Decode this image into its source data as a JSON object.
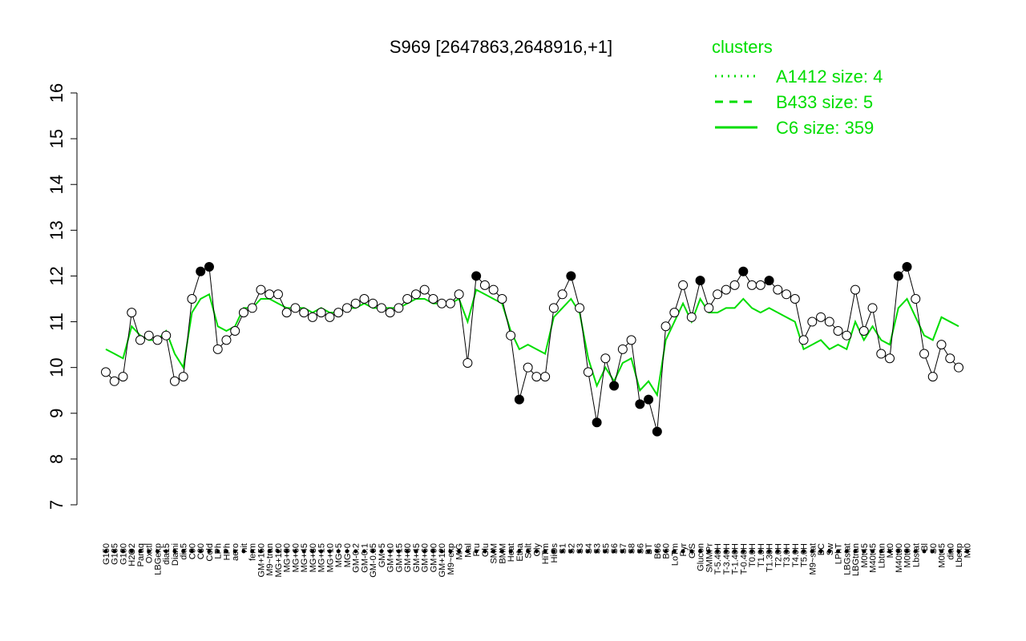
{
  "chart_data": {
    "type": "line",
    "title": "S969 [2647863,2648916,+1]",
    "xlabel": "",
    "ylabel": "",
    "ylim": [
      7,
      16
    ],
    "yticks": [
      7,
      8,
      9,
      10,
      11,
      12,
      13,
      14,
      15,
      16
    ],
    "grid": false,
    "legend_position": "top-right",
    "legend": {
      "title": "clusters",
      "entries": [
        {
          "label": "A1412 size: 4",
          "style": "dotted"
        },
        {
          "label": "B433 size: 5",
          "style": "dashed"
        },
        {
          "label": "C6 size: 359",
          "style": "solid"
        }
      ]
    },
    "colors": {
      "series_line": "#00dd00",
      "points_line": "#000000",
      "point_fill": "#ffffff",
      "highlight_fill": "#000000"
    },
    "x_tick_labels": [
      "G150",
      "G135",
      "G180",
      "H2O2",
      "Paraq",
      "Oxctl",
      "LBGexp",
      "dia15",
      "Diami",
      "dia5",
      "C90",
      "C30",
      "Cold",
      "LPh",
      "HPh",
      "aero",
      "nit",
      "ferm",
      "GM+150",
      "M9~tran",
      "MG+120",
      "MG+90",
      "MG+60",
      "MG+45",
      "MG+30",
      "MG+15",
      "MG+10",
      "MG+5",
      "MG+0",
      "GM-0.2",
      "GM-0.1",
      "GM-0.05",
      "GM+5",
      "GM+10",
      "GM+15",
      "GM+30",
      "GM+45",
      "GM+60",
      "GM+90",
      "GM+120",
      "M9~exp",
      "M/G",
      "Mal",
      "Fru",
      "Glu",
      "SMM",
      "BMM",
      "Heat",
      "Etha",
      "Salt",
      "Gly",
      "HiTm",
      "HiOs",
      "S1",
      "S2",
      "S3",
      "S4",
      "S3",
      "S5",
      "S6",
      "S7",
      "S8",
      "S6",
      "BT",
      "B36",
      "B60",
      "LoTm",
      "Pyr",
      "G/S",
      "Glucon",
      "SMMPr",
      "T-5.40H",
      "T-3.40H",
      "T-1.40H",
      "T-0.40H",
      "T0.0H",
      "T1.0H",
      "T1.30H",
      "T2.0H",
      "T3.0H",
      "T4.0H",
      "T5.0H",
      "M9~stat",
      "BC",
      "Sw",
      "LPhT",
      "LBGstat",
      "LBGtran",
      "M0t45",
      "M40t45",
      "Lbtran",
      "Mt0",
      "M40t90",
      "M0t90",
      "Lbstat",
      "Bl",
      "S0",
      "M0t45",
      "dia0",
      "Lbexp",
      "Mt0"
    ],
    "x": [
      1,
      2,
      3,
      4,
      5,
      6,
      7,
      8,
      9,
      10,
      11,
      12,
      13,
      14,
      15,
      16,
      17,
      18,
      19,
      20,
      21,
      22,
      23,
      24,
      25,
      26,
      27,
      28,
      29,
      30,
      31,
      32,
      33,
      34,
      35,
      36,
      37,
      38,
      39,
      40,
      41,
      42,
      43,
      44,
      45,
      46,
      47,
      48,
      49,
      50,
      51,
      52,
      53,
      54,
      55,
      56,
      57,
      58,
      59,
      60,
      61,
      62,
      63,
      64,
      65,
      66,
      67,
      68,
      69,
      70,
      71,
      72,
      73,
      74,
      75,
      76,
      77,
      78,
      79,
      80,
      81,
      82,
      83,
      84,
      85,
      86,
      87,
      88,
      89,
      90,
      91,
      92,
      93,
      94,
      95,
      96,
      97,
      98,
      99,
      100
    ],
    "series": [
      {
        "type": "points",
        "values": [
          9.9,
          9.7,
          9.8,
          11.2,
          10.6,
          10.7,
          10.6,
          10.7,
          9.7,
          9.8,
          11.5,
          12.1,
          12.2,
          10.4,
          10.6,
          10.8,
          11.2,
          11.3,
          11.7,
          11.6,
          11.6,
          11.2,
          11.3,
          11.2,
          11.1,
          11.2,
          11.1,
          11.2,
          11.3,
          11.4,
          11.5,
          11.4,
          11.3,
          11.2,
          11.3,
          11.5,
          11.6,
          11.7,
          11.5,
          11.4,
          11.4,
          11.6,
          10.1,
          12.0,
          11.8,
          11.7,
          11.5,
          10.7,
          9.3,
          10.0,
          9.8,
          9.8,
          11.3,
          11.6,
          12.0,
          11.3,
          9.9,
          8.8,
          10.2,
          9.6,
          10.4,
          10.6,
          9.2,
          9.3,
          8.6,
          10.9,
          11.2,
          11.8,
          11.1,
          11.9,
          11.3,
          11.6,
          11.7,
          11.8,
          12.1,
          11.8,
          11.8,
          11.9,
          11.7,
          11.6,
          11.5,
          10.6,
          11.0,
          11.1,
          11.0,
          10.8,
          10.7,
          11.7,
          10.8,
          11.3,
          10.3,
          10.2,
          12.0,
          12.2,
          11.5,
          10.3,
          9.8,
          10.5,
          10.2,
          10.0
        ]
      },
      {
        "type": "line",
        "name": "C6 size: 359",
        "values": [
          10.4,
          10.3,
          10.2,
          10.9,
          10.7,
          10.6,
          10.6,
          10.8,
          10.3,
          10.0,
          11.2,
          11.5,
          11.6,
          10.9,
          10.8,
          10.9,
          11.3,
          11.3,
          11.5,
          11.5,
          11.4,
          11.3,
          11.3,
          11.3,
          11.2,
          11.3,
          11.2,
          11.2,
          11.3,
          11.3,
          11.4,
          11.3,
          11.3,
          11.3,
          11.3,
          11.4,
          11.5,
          11.5,
          11.4,
          11.4,
          11.4,
          11.5,
          11.0,
          11.7,
          11.6,
          11.5,
          11.4,
          10.8,
          10.4,
          10.5,
          10.4,
          10.3,
          11.1,
          11.3,
          11.5,
          11.2,
          10.2,
          9.6,
          10.0,
          9.7,
          10.1,
          10.2,
          9.5,
          9.7,
          9.4,
          10.6,
          11.0,
          11.4,
          11.0,
          11.5,
          11.2,
          11.2,
          11.3,
          11.3,
          11.5,
          11.3,
          11.2,
          11.3,
          11.2,
          11.1,
          11.0,
          10.4,
          10.5,
          10.6,
          10.4,
          10.5,
          10.4,
          11.0,
          10.6,
          10.9,
          10.6,
          10.5,
          11.3,
          11.5,
          11.1,
          10.7,
          10.6,
          11.1,
          11.0,
          10.9
        ]
      }
    ]
  }
}
